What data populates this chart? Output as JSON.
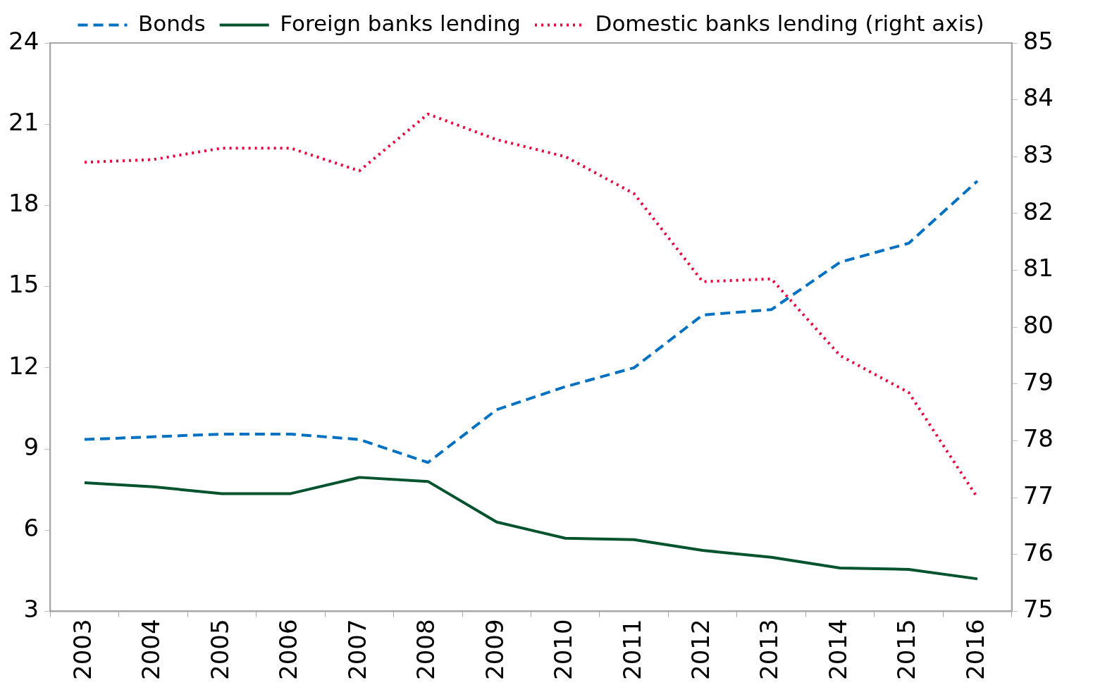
{
  "chart_data": {
    "type": "line",
    "categories": [
      "2003",
      "2004",
      "2005",
      "2006",
      "2007",
      "2008",
      "2009",
      "2010",
      "2011",
      "2012",
      "2013",
      "2014",
      "2015",
      "2016"
    ],
    "series": [
      {
        "name": "Bonds",
        "color": "#0070c0",
        "line_style": "dashed",
        "values": [
          9.35,
          9.45,
          9.55,
          9.55,
          9.35,
          8.5,
          10.45,
          11.3,
          12.0,
          13.95,
          14.15,
          15.9,
          16.6,
          18.9
        ]
      },
      {
        "name": "Foreign banks lending",
        "color": "#00532d",
        "line_style": "solid",
        "values": [
          7.75,
          7.6,
          7.35,
          7.35,
          7.95,
          7.8,
          6.3,
          5.7,
          5.65,
          5.25,
          5.0,
          4.6,
          4.55,
          4.2
        ]
      },
      {
        "name": "Domestic banks lending (right axis)",
        "color": "#e8003c",
        "line_style": "dotted",
        "axis": "y2",
        "values": [
          82.9,
          82.95,
          83.15,
          83.15,
          82.75,
          83.75,
          83.3,
          83.0,
          82.35,
          80.8,
          80.85,
          79.5,
          78.85,
          77.0
        ]
      }
    ],
    "ylim": [
      3,
      24
    ],
    "yticks": [
      3,
      6,
      9,
      12,
      15,
      18,
      21,
      24
    ],
    "y2lim": [
      75,
      85
    ],
    "y2ticks": [
      75,
      76,
      77,
      78,
      79,
      80,
      81,
      82,
      83,
      84,
      85
    ],
    "grid": false,
    "legend": "top",
    "marker": "none"
  }
}
